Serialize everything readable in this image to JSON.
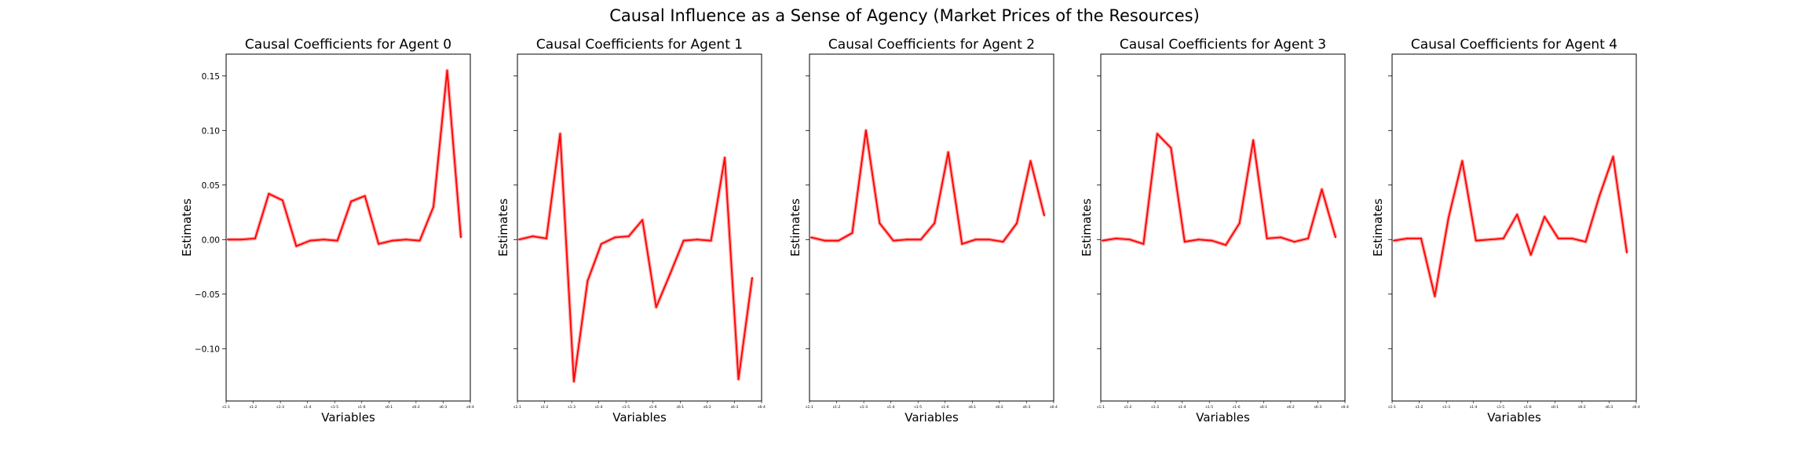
{
  "figure": {
    "suptitle": "Causal Influence as a Sense of Agency (Market Prices of the Resources)"
  },
  "chart_data": [
    {
      "type": "line",
      "title": "Causal Coefficients for Agent 0",
      "xlabel": "Variables",
      "ylabel": "Estimates",
      "ylim": [
        -0.148,
        0.17
      ],
      "yticks": [
        "0.15",
        "0.10",
        "0.05",
        "0.00",
        "−0.05",
        "−0.10"
      ],
      "ytick_values": [
        0.15,
        0.1,
        0.05,
        0.0,
        -0.05,
        -0.1
      ],
      "xtick_labels": [
        "s1-1",
        "s1-2",
        "s1-3",
        "s1-4",
        "s1-5",
        "s1-6",
        "s6-1",
        "s6-2",
        "s6-3",
        "s6-4"
      ],
      "series_color": "#ff0000",
      "band_color": "#ff8080",
      "series": [
        {
          "values": [
            0.0,
            0.0,
            0.001,
            0.042,
            0.036,
            -0.006,
            -0.001,
            0.0,
            -0.001,
            0.035,
            0.04,
            -0.004,
            -0.001,
            0.0,
            -0.001,
            0.03,
            0.155,
            0.002
          ]
        }
      ]
    },
    {
      "type": "line",
      "title": "Causal Coefficients for Agent 1",
      "xlabel": "Variables",
      "ylabel": "Estimates",
      "ylim": [
        -0.148,
        0.17
      ],
      "yticks": [
        "0.15",
        "0.10",
        "0.05",
        "0.00",
        "−0.05",
        "−0.10"
      ],
      "ytick_values": [
        0.15,
        0.1,
        0.05,
        0.0,
        -0.05,
        -0.1
      ],
      "show_ytick_labels": false,
      "xtick_labels": [
        "s1-1",
        "s1-2",
        "s1-3",
        "s1-4",
        "s1-5",
        "s1-6",
        "s6-1",
        "s6-2",
        "s6-3",
        "s6-4"
      ],
      "series_color": "#ff0000",
      "band_color": "#ff8080",
      "series": [
        {
          "values": [
            0.0,
            0.003,
            0.001,
            0.097,
            -0.13,
            -0.038,
            -0.004,
            0.002,
            0.003,
            0.018,
            -0.062,
            -0.032,
            -0.001,
            0.0,
            -0.001,
            0.075,
            -0.128,
            -0.035
          ]
        }
      ]
    },
    {
      "type": "line",
      "title": "Causal Coefficients for Agent 2",
      "xlabel": "Variables",
      "ylabel": "Estimates",
      "ylim": [
        -0.148,
        0.17
      ],
      "yticks": [
        "0.15",
        "0.10",
        "0.05",
        "0.00",
        "−0.05",
        "−0.10"
      ],
      "ytick_values": [
        0.15,
        0.1,
        0.05,
        0.0,
        -0.05,
        -0.1
      ],
      "show_ytick_labels": false,
      "xtick_labels": [
        "s1-1",
        "s1-2",
        "s1-3",
        "s1-4",
        "s1-5",
        "s1-6",
        "s6-1",
        "s6-2",
        "s6-3",
        "s6-4"
      ],
      "series_color": "#ff0000",
      "band_color": "#ff8080",
      "series": [
        {
          "values": [
            0.002,
            -0.001,
            -0.001,
            0.006,
            0.1,
            0.015,
            -0.001,
            0.0,
            0.0,
            0.015,
            0.08,
            -0.004,
            0.0,
            0.0,
            -0.002,
            0.015,
            0.072,
            0.022
          ]
        }
      ]
    },
    {
      "type": "line",
      "title": "Causal Coefficients for Agent 3",
      "xlabel": "Variables",
      "ylabel": "Estimates",
      "ylim": [
        -0.148,
        0.17
      ],
      "yticks": [
        "0.15",
        "0.10",
        "0.05",
        "0.00",
        "−0.05",
        "−0.10"
      ],
      "ytick_values": [
        0.15,
        0.1,
        0.05,
        0.0,
        -0.05,
        -0.1
      ],
      "show_ytick_labels": false,
      "xtick_labels": [
        "s1-1",
        "s1-2",
        "s1-3",
        "s1-4",
        "s1-5",
        "s1-6",
        "s6-1",
        "s6-2",
        "s6-3",
        "s6-4"
      ],
      "series_color": "#ff0000",
      "band_color": "#ff8080",
      "series": [
        {
          "values": [
            -0.001,
            0.001,
            0.0,
            -0.004,
            0.097,
            0.084,
            -0.002,
            0.0,
            -0.001,
            -0.005,
            0.015,
            0.091,
            0.001,
            0.002,
            -0.002,
            0.001,
            0.046,
            0.002
          ]
        }
      ]
    },
    {
      "type": "line",
      "title": "Causal Coefficients for Agent 4",
      "xlabel": "Variables",
      "ylabel": "Estimates",
      "ylim": [
        -0.148,
        0.17
      ],
      "yticks": [
        "0.15",
        "0.10",
        "0.05",
        "0.00",
        "−0.05",
        "−0.10"
      ],
      "ytick_values": [
        0.15,
        0.1,
        0.05,
        0.0,
        -0.05,
        -0.1
      ],
      "show_ytick_labels": false,
      "xtick_labels": [
        "s1-1",
        "s1-2",
        "s1-3",
        "s1-4",
        "s1-5",
        "s1-6",
        "s6-1",
        "s6-2",
        "s6-3",
        "s6-4"
      ],
      "series_color": "#ff0000",
      "band_color": "#ff8080",
      "series": [
        {
          "values": [
            -0.001,
            0.001,
            0.001,
            -0.052,
            0.02,
            0.072,
            -0.001,
            0.0,
            0.001,
            0.023,
            -0.014,
            0.021,
            0.001,
            0.001,
            -0.002,
            0.04,
            0.076,
            -0.012
          ]
        }
      ]
    }
  ]
}
